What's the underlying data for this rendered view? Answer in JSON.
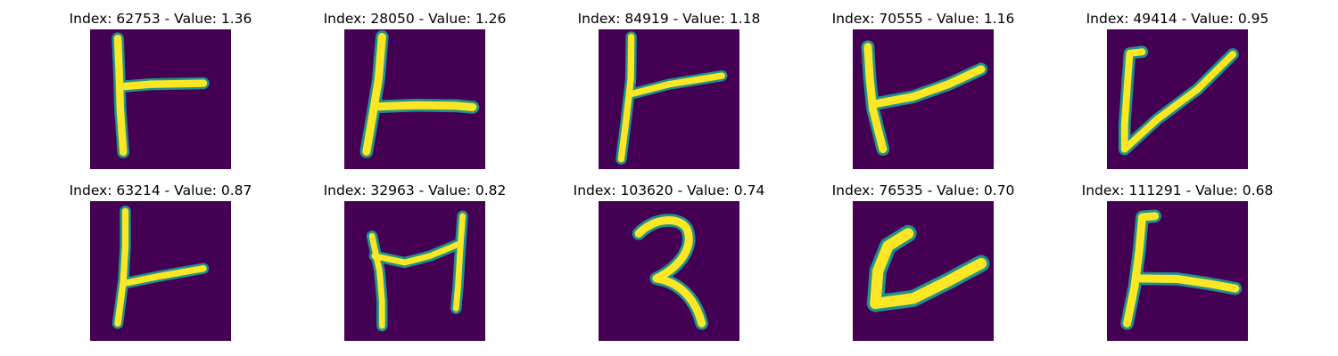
{
  "colors": {
    "background": "#440154",
    "stroke_edge": "#21918c",
    "stroke_mid": "#7ad151",
    "stroke_core": "#fde725"
  },
  "panels": [
    {
      "title": "Index: 62753 - Value: 1.36"
    },
    {
      "title": "Index: 28050 - Value: 1.26"
    },
    {
      "title": "Index: 84919 - Value: 1.18"
    },
    {
      "title": "Index: 70555 - Value: 1.16"
    },
    {
      "title": "Index: 49414 - Value: 0.95"
    },
    {
      "title": "Index: 63214 - Value: 0.87"
    },
    {
      "title": "Index: 32963 - Value: 0.82"
    },
    {
      "title": "Index: 103620 - Value: 0.74"
    },
    {
      "title": "Index: 76535 - Value: 0.70"
    },
    {
      "title": "Index: 111291 - Value: 0.68"
    }
  ]
}
